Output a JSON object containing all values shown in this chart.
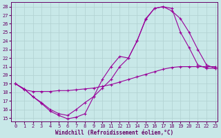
{
  "background_color": "#c8e8e8",
  "line_color": "#990099",
  "grid_color": "#b0d0d0",
  "axis_color": "#660066",
  "xlabel": "Windchill (Refroidissement éolien,°C)",
  "xlim_min": -0.5,
  "xlim_max": 23.3,
  "ylim_min": 14.6,
  "ylim_max": 28.5,
  "xticks": [
    0,
    1,
    2,
    3,
    4,
    5,
    6,
    7,
    8,
    9,
    10,
    11,
    12,
    13,
    14,
    15,
    16,
    17,
    18,
    19,
    20,
    21,
    22,
    23
  ],
  "yticks": [
    15,
    16,
    17,
    18,
    19,
    20,
    21,
    22,
    23,
    24,
    25,
    26,
    27,
    28
  ],
  "curve1_x": [
    0,
    1,
    2,
    3,
    4,
    5,
    6,
    7,
    8,
    9,
    10,
    11,
    12,
    13,
    14,
    15,
    16,
    17,
    18,
    19,
    20,
    21,
    22,
    23
  ],
  "curve1_y": [
    19,
    18.4,
    17.5,
    16.7,
    15.8,
    15.3,
    14.9,
    15.1,
    15.5,
    17.5,
    19.5,
    21.0,
    22.2,
    22.0,
    24.0,
    26.6,
    27.8,
    28.0,
    27.8,
    25.0,
    23.2,
    21.2,
    20.8,
    20.8
  ],
  "curve2_x": [
    0,
    1,
    2,
    3,
    4,
    5,
    6,
    7,
    8,
    9,
    10,
    11,
    12,
    13,
    14,
    15,
    16,
    17,
    18,
    19,
    20,
    21,
    22,
    23
  ],
  "curve2_y": [
    19,
    18.4,
    17.5,
    16.8,
    16.0,
    15.5,
    15.3,
    16.0,
    16.8,
    17.5,
    18.5,
    19.5,
    21.0,
    22.0,
    24.0,
    26.5,
    27.8,
    28.0,
    27.5,
    26.6,
    25.0,
    23.0,
    21.2,
    20.8
  ],
  "curve3_x": [
    0,
    1,
    2,
    3,
    4,
    5,
    6,
    7,
    8,
    9,
    10,
    11,
    12,
    13,
    14,
    15,
    16,
    17,
    18,
    19,
    20,
    21,
    22,
    23
  ],
  "curve3_y": [
    19.0,
    18.3,
    18.1,
    18.1,
    18.1,
    18.2,
    18.2,
    18.3,
    18.4,
    18.5,
    18.7,
    18.9,
    19.2,
    19.5,
    19.8,
    20.1,
    20.4,
    20.7,
    20.9,
    21.0,
    21.0,
    21.0,
    21.0,
    21.0
  ],
  "tick_fontsize": 5.0,
  "xlabel_fontsize": 5.5
}
